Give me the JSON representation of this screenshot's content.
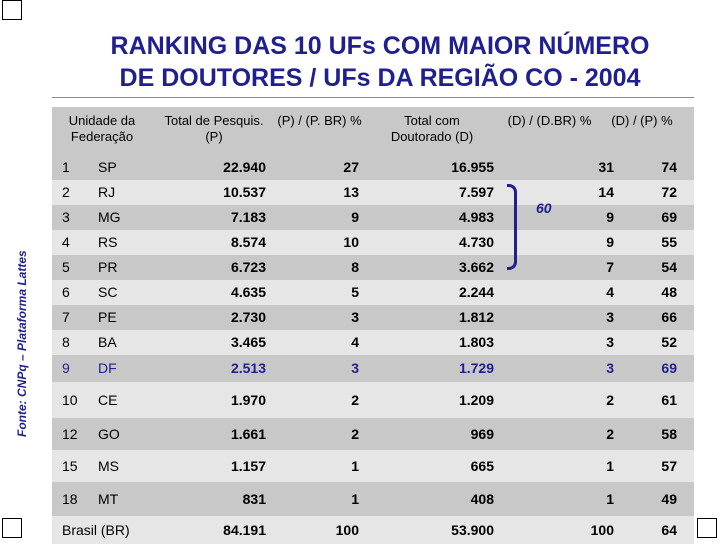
{
  "title_line1": "RANKING DAS 10 UFs COM MAIOR NÚMERO",
  "title_line2": "DE DOUTORES / UFs DA REGIÃO CO - 2004",
  "source": "Fonte: CNPq – Plataforma Lattes",
  "headers": {
    "uf": "Unidade da Federação",
    "total_pesq": "Total de Pesquis. (P)",
    "p_pbr": "(P) / (P. BR) %",
    "total_dout": "Total com Doutorado (D)",
    "d_dbr": "(D) / (D.BR) %",
    "d_p": "(D) / (P) %"
  },
  "rows": [
    {
      "rank": "1",
      "uf": "SP",
      "p": "22.940",
      "ppbr": "27",
      "d": "16.955",
      "ddbr": "31",
      "dp": "74"
    },
    {
      "rank": "2",
      "uf": "RJ",
      "p": "10.537",
      "ppbr": "13",
      "d": "7.597",
      "ddbr": "14",
      "dp": "72"
    },
    {
      "rank": "3",
      "uf": "MG",
      "p": "7.183",
      "ppbr": "9",
      "d": "4.983",
      "ddbr": "9",
      "dp": "69"
    },
    {
      "rank": "4",
      "uf": "RS",
      "p": "8.574",
      "ppbr": "10",
      "d": "4.730",
      "ddbr": "9",
      "dp": "55"
    },
    {
      "rank": "5",
      "uf": "PR",
      "p": "6.723",
      "ppbr": "8",
      "d": "3.662",
      "ddbr": "7",
      "dp": "54"
    },
    {
      "rank": "6",
      "uf": "SC",
      "p": "4.635",
      "ppbr": "5",
      "d": "2.244",
      "ddbr": "4",
      "dp": "48"
    },
    {
      "rank": "7",
      "uf": "PE",
      "p": "2.730",
      "ppbr": "3",
      "d": "1.812",
      "ddbr": "3",
      "dp": "66"
    },
    {
      "rank": "8",
      "uf": "BA",
      "p": "3.465",
      "ppbr": "4",
      "d": "1.803",
      "ddbr": "3",
      "dp": "52"
    },
    {
      "rank": "9",
      "uf": "DF",
      "p": "2.513",
      "ppbr": "3",
      "d": "1.729",
      "ddbr": "3",
      "dp": "69"
    },
    {
      "rank": "10",
      "uf": "CE",
      "p": "1.970",
      "ppbr": "2",
      "d": "1.209",
      "ddbr": "2",
      "dp": "61"
    },
    {
      "rank": "12",
      "uf": "GO",
      "p": "1.661",
      "ppbr": "2",
      "d": "969",
      "ddbr": "2",
      "dp": "58"
    },
    {
      "rank": "15",
      "uf": "MS",
      "p": "1.157",
      "ppbr": "1",
      "d": "665",
      "ddbr": "1",
      "dp": "57"
    },
    {
      "rank": "18",
      "uf": "MT",
      "p": "831",
      "ppbr": "1",
      "d": "408",
      "ddbr": "1",
      "dp": "49"
    }
  ],
  "total_row": {
    "label": "Brasil (BR)",
    "p": "84.191",
    "ppbr": "100",
    "d": "53.900",
    "ddbr": "100",
    "dp": "64"
  },
  "brace_value": "60",
  "colors": {
    "title": "#1f1f8f",
    "highlight_text": "#1f1f8f",
    "dark_band": "#c8c8c8",
    "light_band": "#e6e6e6"
  }
}
